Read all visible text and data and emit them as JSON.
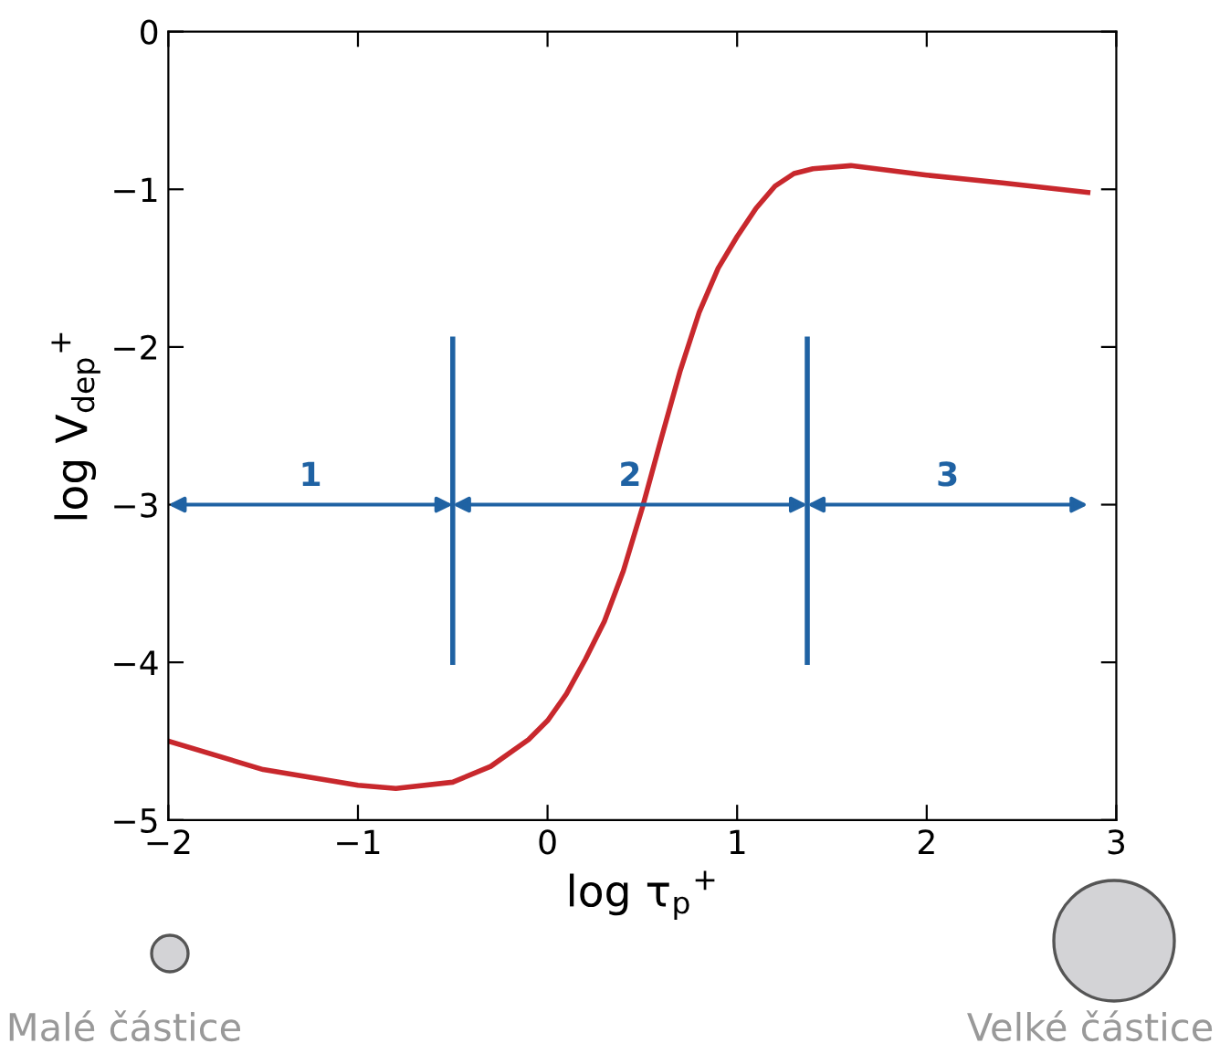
{
  "chart_data": {
    "type": "line",
    "xlabel": "log τ$_{p}$$^{+}$",
    "ylabel": "log V$_{dep}$$^{+}$",
    "x": [
      -2,
      -1.5,
      -1,
      -0.8,
      -0.5,
      -0.3,
      -0.1,
      0,
      0.1,
      0.2,
      0.3,
      0.4,
      0.5,
      0.6,
      0.7,
      0.8,
      0.9,
      1,
      1.1,
      1.2,
      1.3,
      1.4,
      1.6,
      1.8,
      2,
      2.4,
      2.85
    ],
    "series": [
      {
        "color": "#c8282d",
        "values": [
          -4.5,
          -4.68,
          -4.78,
          -4.8,
          -4.76,
          -4.66,
          -4.49,
          -4.37,
          -4.2,
          -3.98,
          -3.74,
          -3.42,
          -3.02,
          -2.58,
          -2.15,
          -1.78,
          -1.5,
          -1.3,
          -1.12,
          -0.98,
          -0.9,
          -0.87,
          -0.85,
          -0.88,
          -0.91,
          -0.96,
          -1.02
        ]
      }
    ],
    "xlim": [
      -2,
      3
    ],
    "ylim": [
      -5,
      0
    ],
    "xticks": [
      {
        "value": -2,
        "label": "−2"
      },
      {
        "value": -1,
        "label": "−1"
      },
      0,
      1,
      2,
      3
    ],
    "yticks": [
      {
        "value": -5,
        "label": "−5"
      },
      {
        "value": -4,
        "label": "−4"
      },
      {
        "value": -3,
        "label": "−3"
      },
      {
        "value": -2,
        "label": "−2"
      },
      {
        "value": -1,
        "label": "−1"
      },
      0
    ],
    "ref_lines": [
      {
        "axis": "x",
        "value": -0.5,
        "color": "#1f62a3"
      },
      {
        "axis": "x",
        "value": 1.37,
        "color": "#1f62a3"
      }
    ],
    "annotations": [
      "1",
      "2",
      "3",
      "Malé částice",
      "Velké částice"
    ],
    "grid": false,
    "legend": false,
    "marker": "none",
    "line_style": "solid"
  }
}
